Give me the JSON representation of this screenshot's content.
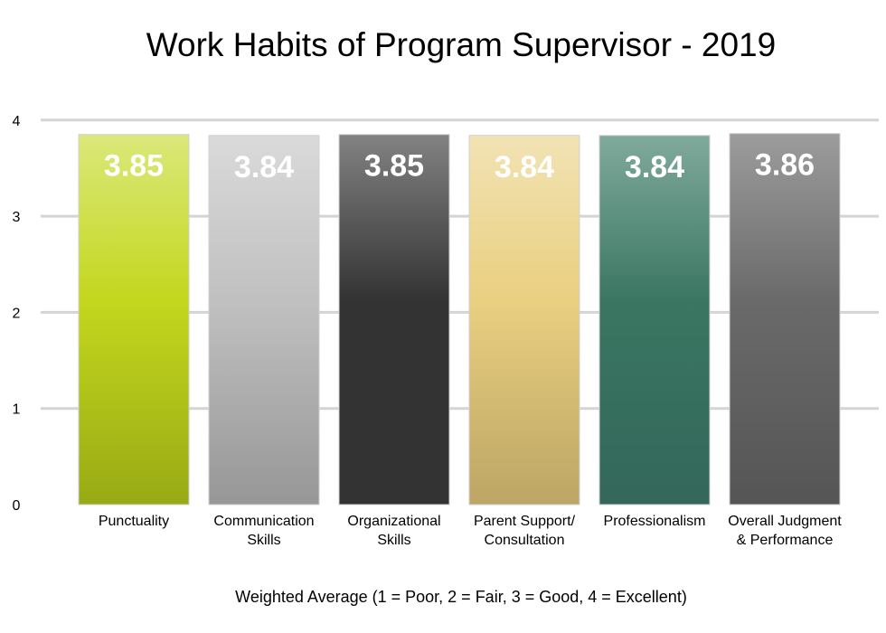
{
  "chart_data": {
    "type": "bar",
    "title": "Work Habits of Program Supervisor - 2019",
    "xlabel": "Weighted Average (1 = Poor, 2 = Fair, 3 = Good, 4 = Excellent)",
    "ylabel": "",
    "ylim": [
      0,
      4
    ],
    "yticks": [
      "0",
      "1",
      "2",
      "3",
      "4"
    ],
    "grid": true,
    "categories": [
      [
        "Punctuality"
      ],
      [
        "Communication",
        "Skills"
      ],
      [
        "Organizational",
        "Skills"
      ],
      [
        "Parent Support/",
        "Consultation"
      ],
      [
        "Professionalism"
      ],
      [
        "Overall Judgment",
        "& Performance"
      ]
    ],
    "values": [
      3.85,
      3.84,
      3.85,
      3.84,
      3.84,
      3.86
    ],
    "data_labels": [
      "3.85",
      "3.84",
      "3.85",
      "3.84",
      "3.84",
      "3.86"
    ],
    "colors": [
      [
        "#dbe87a",
        "#c3d71e",
        "#98aa14"
      ],
      [
        "#dadada",
        "#c0c0c0",
        "#979797"
      ],
      [
        "#828282",
        "#333333",
        "#333333"
      ],
      [
        "#f2e3b4",
        "#e9cf80",
        "#bca565"
      ],
      [
        "#80aa9b",
        "#3a7662",
        "#33675a"
      ],
      [
        "#9c9c9c",
        "#6a6a6a",
        "#555555"
      ]
    ]
  }
}
